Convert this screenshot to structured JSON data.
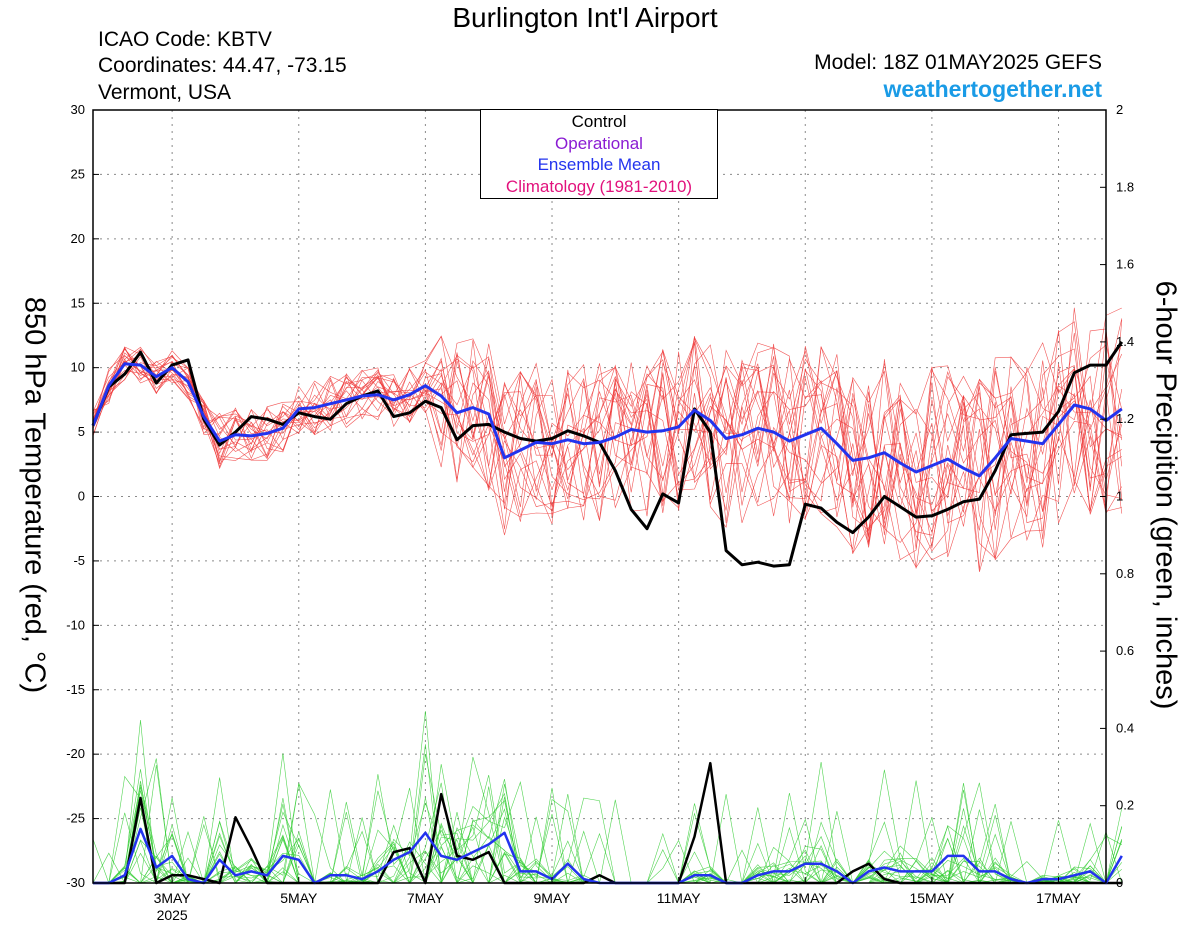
{
  "header": {
    "title": "Burlington Int'l Airport",
    "icao": "ICAO Code: KBTV",
    "coordinates": "Coordinates: 44.47, -73.15",
    "location": "Vermont, USA",
    "model": "Model: 18Z 01MAY2025 GEFS",
    "website": "weathertogether.net"
  },
  "colors": {
    "control": "#000000",
    "operational": "#8a1bd3",
    "ensemble_mean": "#2233ee",
    "climatology": "#e2127d",
    "members_temp": "#ee3a3a",
    "members_precip": "#33cc33",
    "website": "#1a9be6"
  },
  "chart_data": {
    "type": "line",
    "title": "Burlington Int'l Airport",
    "ylabel": "850 hPa Temperature (red, °C)",
    "y2label": "6-hour Precipition (green, inches)",
    "ylim": [
      -30,
      30
    ],
    "y2lim": [
      0,
      2
    ],
    "yticks": [
      30,
      25,
      20,
      15,
      10,
      5,
      0,
      -5,
      -10,
      -15,
      -20,
      -25,
      -30
    ],
    "y2ticks": [
      2,
      1.8,
      1.6,
      1.4,
      1.2,
      1,
      0.8,
      0.6,
      0.4,
      0.2,
      0
    ],
    "x_start_day": 1.75,
    "x_step_days": 0.25,
    "xlim_days": [
      1.75,
      17.75
    ],
    "xticks": [
      {
        "day": 3,
        "label": "3MAY",
        "sublabel": "2025"
      },
      {
        "day": 5,
        "label": "5MAY",
        "sublabel": ""
      },
      {
        "day": 7,
        "label": "7MAY",
        "sublabel": ""
      },
      {
        "day": 9,
        "label": "9MAY",
        "sublabel": ""
      },
      {
        "day": 11,
        "label": "11MAY",
        "sublabel": ""
      },
      {
        "day": 13,
        "label": "13MAY",
        "sublabel": ""
      },
      {
        "day": 15,
        "label": "15MAY",
        "sublabel": ""
      },
      {
        "day": 17,
        "label": "17MAY",
        "sublabel": ""
      }
    ],
    "grid": true,
    "legend": {
      "placement": "top-center",
      "entries": [
        "Control",
        "Operational",
        "Ensemble Mean",
        "Climatology (1981-2010)"
      ]
    },
    "series": [
      {
        "name": "Control",
        "axis": "temperature",
        "values": [
          5.5,
          8.5,
          9.5,
          11.2,
          8.8,
          10.2,
          10.6,
          6.0,
          4.0,
          5.0,
          6.2,
          6.0,
          5.6,
          6.5,
          6.2,
          6.0,
          7.2,
          7.8,
          8.2,
          6.2,
          6.5,
          7.4,
          6.9,
          4.4,
          5.5,
          5.6,
          5.0,
          4.5,
          4.3,
          4.5,
          5.1,
          4.7,
          4.2,
          2.0,
          -1.0,
          -2.5,
          0.2,
          -0.5,
          6.8,
          5.0,
          -4.2,
          -5.3,
          -5.1,
          -5.4,
          -5.3,
          -0.6,
          -0.9,
          -2.0,
          -2.8,
          -1.6,
          0.0,
          -0.8,
          -1.6,
          -1.5,
          -1.0,
          -0.4,
          -0.2,
          2.0,
          4.8,
          4.9,
          5.0,
          6.6,
          9.6,
          10.2,
          10.2,
          12.0
        ]
      },
      {
        "name": "Ensemble Mean",
        "axis": "temperature",
        "values": [
          5.5,
          8.6,
          10.3,
          10.2,
          9.3,
          10.0,
          8.9,
          6.2,
          4.3,
          4.8,
          4.7,
          4.9,
          5.3,
          6.8,
          6.9,
          7.2,
          7.5,
          7.8,
          7.9,
          7.5,
          7.9,
          8.6,
          7.8,
          6.5,
          6.9,
          6.4,
          3.0,
          3.6,
          4.2,
          4.1,
          4.4,
          4.1,
          4.2,
          4.6,
          5.2,
          5.0,
          5.1,
          5.4,
          6.7,
          5.9,
          4.5,
          4.8,
          5.3,
          5.0,
          4.3,
          4.8,
          5.3,
          4.1,
          2.8,
          3.0,
          3.4,
          2.6,
          1.9,
          2.4,
          2.9,
          2.2,
          1.6,
          3.0,
          4.5,
          4.3,
          4.1,
          5.6,
          7.1,
          6.8,
          5.9,
          6.8
        ]
      },
      {
        "name": "Control precip",
        "axis": "precip",
        "values": [
          0,
          0,
          0,
          0.22,
          0,
          0.02,
          0.02,
          0.01,
          0,
          0.17,
          0.09,
          0,
          0,
          0,
          0,
          0,
          0,
          0,
          0,
          0.08,
          0.09,
          0,
          0.23,
          0.07,
          0.06,
          0.08,
          0,
          0,
          0,
          0,
          0,
          0,
          0.02,
          0,
          0,
          0,
          0,
          0,
          0.12,
          0.31,
          0,
          0,
          0,
          0,
          0,
          0,
          0,
          0,
          0.03,
          0.05,
          0.01,
          0,
          0,
          0,
          0,
          0,
          0,
          0,
          0,
          0,
          0,
          0,
          0,
          0,
          0,
          0
        ]
      },
      {
        "name": "Ensemble Mean precip",
        "axis": "precip",
        "values": [
          0,
          0,
          0.02,
          0.14,
          0.04,
          0.07,
          0.01,
          0,
          0.06,
          0.02,
          0.03,
          0.02,
          0.07,
          0.06,
          0,
          0.02,
          0.02,
          0.01,
          0.03,
          0.06,
          0.08,
          0.13,
          0.07,
          0.06,
          0.08,
          0.1,
          0.13,
          0.03,
          0.03,
          0.01,
          0.05,
          0.01,
          0,
          0,
          0,
          0,
          0,
          0,
          0.02,
          0.02,
          0,
          0,
          0.02,
          0.03,
          0.03,
          0.05,
          0.05,
          0.03,
          0,
          0.03,
          0.04,
          0.03,
          0.03,
          0.03,
          0.07,
          0.07,
          0.03,
          0.03,
          0.01,
          0,
          0.01,
          0.01,
          0.02,
          0.03,
          0,
          0.07
        ]
      }
    ]
  }
}
